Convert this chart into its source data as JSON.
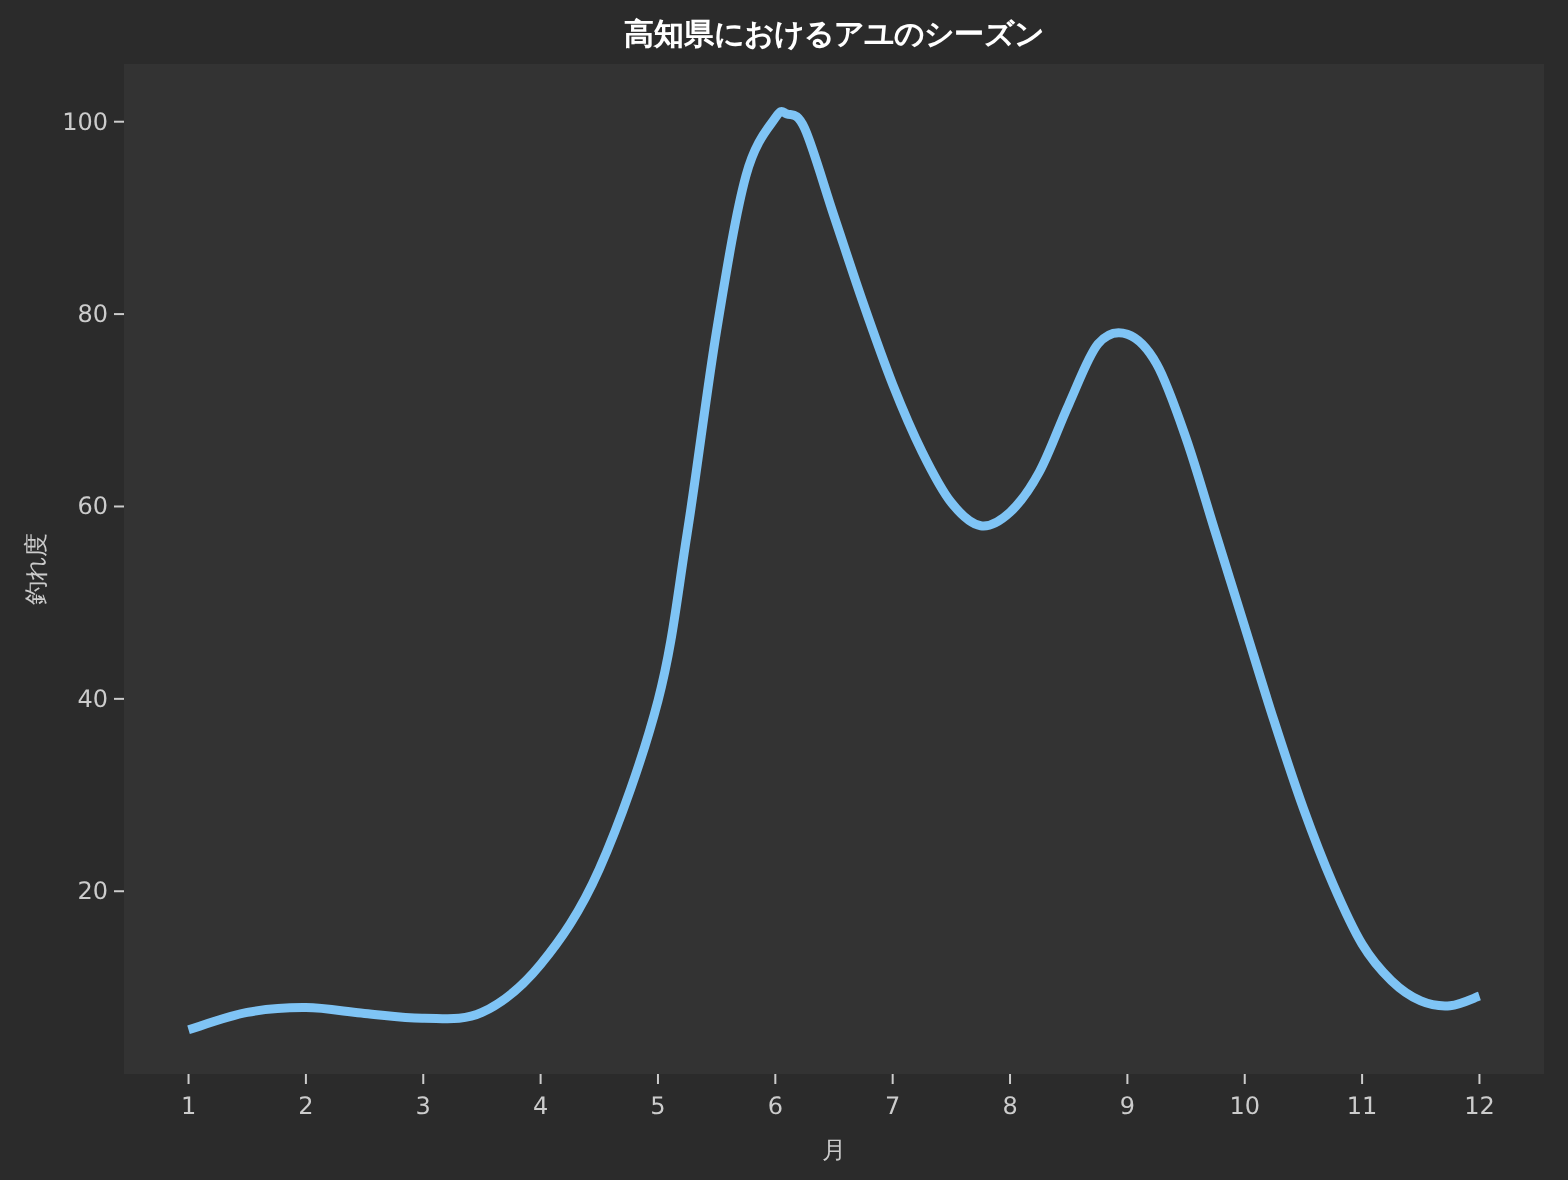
{
  "chart_data": {
    "type": "line",
    "title": "高知県におけるアユのシーズン",
    "xlabel": "月",
    "ylabel": "釣れ度",
    "xlim": [
      0.45,
      12.55
    ],
    "xticks": [
      1,
      2,
      3,
      4,
      5,
      6,
      7,
      8,
      9,
      10,
      11,
      12
    ],
    "ylim": [
      1,
      106
    ],
    "yticks": [
      20,
      40,
      60,
      80,
      100
    ],
    "grid": false,
    "marker": "none",
    "line_style": "solid",
    "series": [
      {
        "color": "#7fc4f5",
        "x": [
          1,
          1.5,
          2,
          2.5,
          3,
          3.5,
          4,
          4.5,
          5,
          5.25,
          5.5,
          5.75,
          6,
          6.1,
          6.25,
          6.5,
          6.75,
          7,
          7.25,
          7.5,
          7.75,
          8,
          8.25,
          8.5,
          8.75,
          9,
          9.25,
          9.5,
          9.75,
          10,
          10.25,
          10.5,
          10.75,
          11,
          11.25,
          11.5,
          11.75,
          12
        ],
        "values": [
          5.6,
          7.4,
          7.9,
          7.3,
          6.8,
          7.4,
          12.4,
          22.3,
          39.8,
          57.3,
          78.3,
          94.4,
          100.4,
          100.8,
          99.3,
          90.2,
          81.1,
          72.7,
          65.7,
          60.4,
          58.0,
          59.4,
          63.6,
          70.6,
          76.9,
          77.9,
          74.8,
          67.1,
          57.3,
          47.5,
          37.7,
          28.6,
          20.8,
          14.5,
          10.7,
          8.6,
          8.1,
          9.1
        ]
      }
    ]
  }
}
